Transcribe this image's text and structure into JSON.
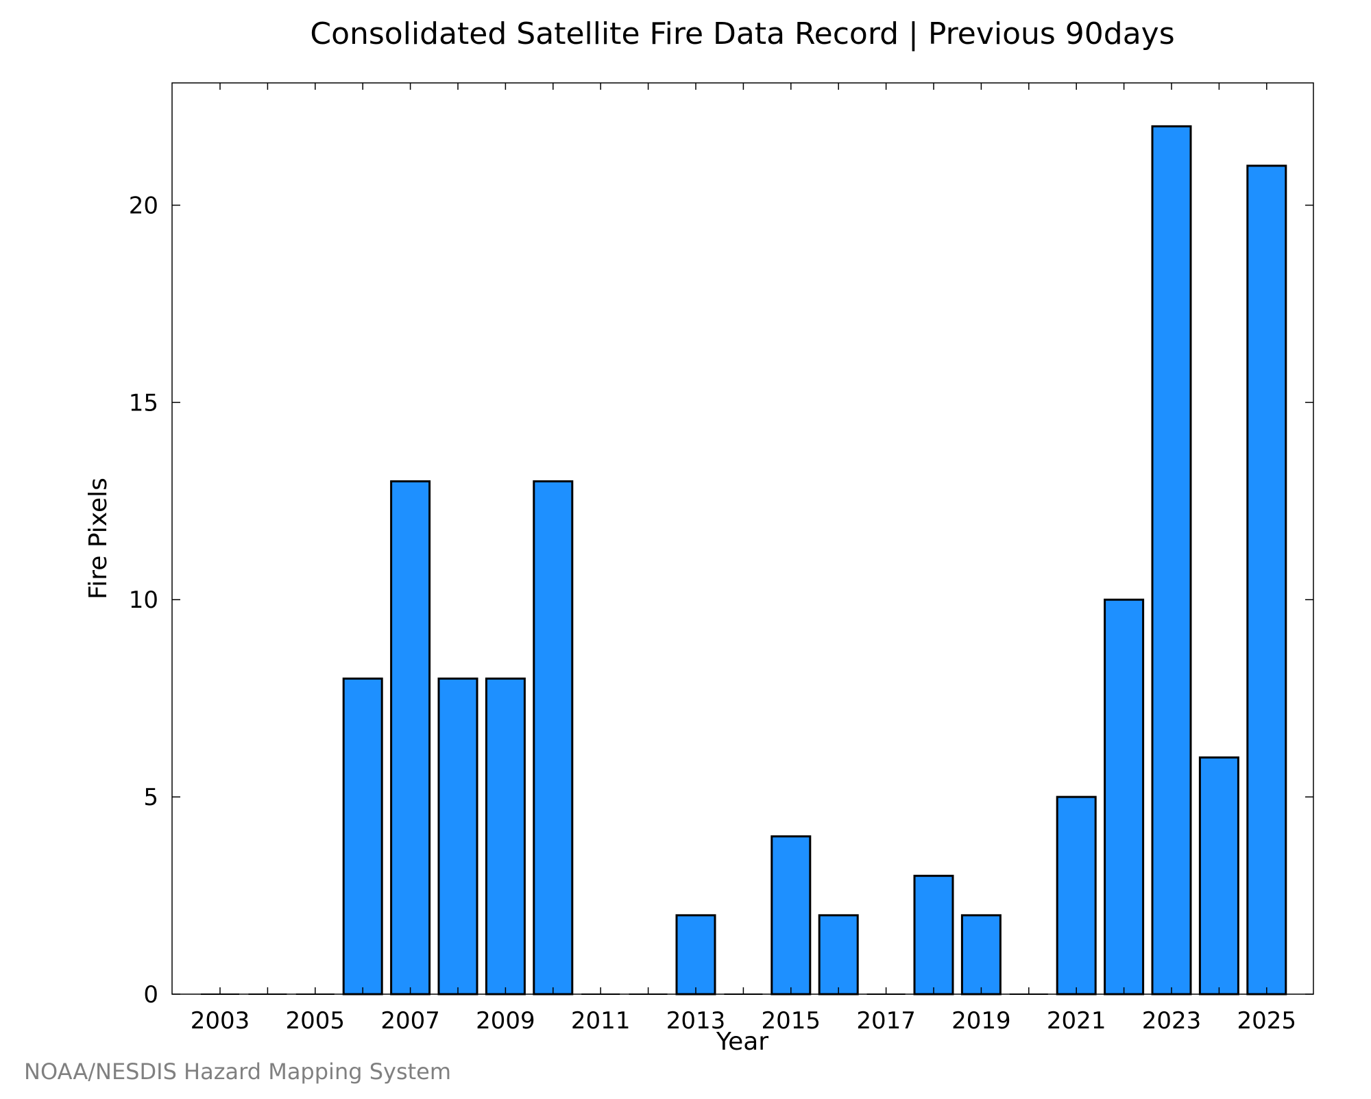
{
  "chart_data": {
    "type": "bar",
    "title": "Consolidated Satellite Fire Data Record | Previous 90days",
    "xlabel": "Year",
    "ylabel": "Fire Pixels",
    "categories": [
      "2003",
      "2004",
      "2005",
      "2006",
      "2007",
      "2008",
      "2009",
      "2010",
      "2011",
      "2012",
      "2013",
      "2014",
      "2015",
      "2016",
      "2017",
      "2018",
      "2019",
      "2020",
      "2021",
      "2022",
      "2023",
      "2024",
      "2025"
    ],
    "values": [
      0,
      0,
      0,
      8,
      13,
      8,
      8,
      13,
      0,
      0,
      2,
      0,
      4,
      2,
      0,
      3,
      2,
      0,
      5,
      10,
      22,
      6,
      21
    ],
    "x_tick_labels": [
      "2003",
      "2005",
      "2007",
      "2009",
      "2011",
      "2013",
      "2015",
      "2017",
      "2019",
      "2021",
      "2023",
      "2025"
    ],
    "y_ticks": [
      "0",
      "5",
      "10",
      "15",
      "20"
    ],
    "ylim": [
      0,
      23.1
    ],
    "bar_color": "#1e90ff",
    "bar_edge_color": "#000000",
    "grid": false,
    "legend": false
  },
  "credit": "NOAA/NESDIS Hazard Mapping System"
}
